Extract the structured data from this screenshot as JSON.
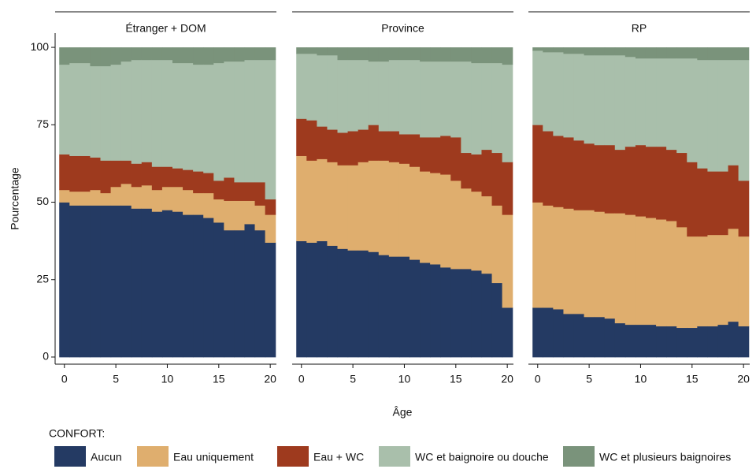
{
  "chart_data": [
    {
      "type": "bar",
      "stacked": true,
      "title": "Étranger + DOM",
      "ylabel": "Pourcentage",
      "legend_title": "CONFORT:",
      "x": [
        0,
        1,
        2,
        3,
        4,
        5,
        6,
        7,
        8,
        9,
        10,
        11,
        12,
        13,
        14,
        15,
        16,
        17,
        18,
        19,
        20
      ],
      "xlim": [
        -0.9,
        20.6
      ],
      "xticks": [
        0,
        5,
        10,
        15,
        20
      ],
      "ylim": [
        -2.3,
        104.6
      ],
      "yticks": [
        0,
        25,
        50,
        75,
        100
      ],
      "series": [
        {
          "name": "Aucun",
          "color": "#243a63",
          "values": [
            50,
            49,
            49,
            49,
            49,
            49,
            49,
            48,
            48,
            47,
            47.5,
            47,
            46,
            46,
            45,
            43.5,
            41,
            41,
            43,
            41,
            37
          ]
        },
        {
          "name": "Eau uniquement",
          "color": "#dfae6e",
          "values": [
            4,
            4.5,
            4.5,
            5,
            4,
            6,
            7,
            7,
            7.5,
            7,
            7.5,
            8,
            8,
            7,
            8,
            7.5,
            9.5,
            9.5,
            7.5,
            8,
            9
          ]
        },
        {
          "name": "Eau + WC",
          "color": "#9e3a1e",
          "values": [
            11.5,
            11.5,
            11.5,
            10.5,
            10.5,
            8.5,
            7.5,
            7.5,
            7.5,
            7.5,
            6.5,
            6,
            6.5,
            7,
            6.5,
            6,
            7.5,
            6,
            6,
            7.5,
            5
          ]
        },
        {
          "name": "WC et baignoire ou douche",
          "color": "#a9bfab",
          "values": [
            29,
            30,
            30,
            29.5,
            30.5,
            31,
            32,
            33.5,
            33,
            34.5,
            34.5,
            34,
            34.5,
            34.5,
            35,
            38,
            37.5,
            39,
            39.5,
            39.5,
            45
          ]
        },
        {
          "name": "WC et plusieurs baignoires",
          "color": "#7a937b",
          "values": [
            5.5,
            5,
            5,
            6,
            6,
            5.5,
            4.5,
            4,
            4,
            4,
            4,
            5,
            5,
            5.5,
            5.5,
            5,
            4.5,
            4.5,
            4,
            4,
            4
          ]
        }
      ]
    },
    {
      "type": "bar",
      "stacked": true,
      "title": "Province",
      "xlabel": "Âge",
      "x": [
        0,
        1,
        2,
        3,
        4,
        5,
        6,
        7,
        8,
        9,
        10,
        11,
        12,
        13,
        14,
        15,
        16,
        17,
        18,
        19,
        20
      ],
      "xlim": [
        -0.9,
        20.6
      ],
      "xticks": [
        0,
        5,
        10,
        15,
        20
      ],
      "ylim": [
        -2.3,
        104.6
      ],
      "series": [
        {
          "name": "Aucun",
          "color": "#243a63",
          "values": [
            37.5,
            37,
            37.5,
            36,
            35,
            34.5,
            34.5,
            34,
            33,
            32.5,
            32.5,
            31.5,
            30.5,
            30,
            29,
            28.5,
            28.5,
            28,
            27,
            24,
            16
          ]
        },
        {
          "name": "Eau uniquement",
          "color": "#dfae6e",
          "values": [
            27.5,
            26.5,
            26.5,
            27,
            27,
            27.5,
            28.5,
            29.5,
            30.5,
            30.5,
            30,
            30,
            29.5,
            29.5,
            30,
            28.5,
            26,
            25.5,
            25,
            25,
            30
          ]
        },
        {
          "name": "Eau + WC",
          "color": "#9e3a1e",
          "values": [
            12,
            13,
            10.5,
            10.5,
            10.5,
            11,
            10.5,
            11.5,
            9.5,
            10,
            9.5,
            10.5,
            11,
            11.5,
            12.5,
            14,
            11.5,
            12,
            15,
            17,
            17
          ]
        },
        {
          "name": "WC et baignoire ou douche",
          "color": "#a9bfab",
          "values": [
            21,
            21.5,
            23,
            24,
            23.5,
            23,
            22.5,
            20.5,
            22.5,
            23,
            24,
            24,
            24.5,
            24.5,
            24,
            24.5,
            29.5,
            29.5,
            28,
            29,
            31.5
          ]
        },
        {
          "name": "WC et plusieurs baignoires",
          "color": "#7a937b",
          "values": [
            2,
            2,
            2.5,
            2.5,
            4,
            4,
            4,
            4.5,
            4.5,
            4,
            4,
            4,
            4.5,
            4.5,
            4.5,
            4.5,
            4.5,
            5,
            5,
            5,
            5.5
          ]
        }
      ]
    },
    {
      "type": "bar",
      "stacked": true,
      "title": "RP",
      "x": [
        0,
        1,
        2,
        3,
        4,
        5,
        6,
        7,
        8,
        9,
        10,
        11,
        12,
        13,
        14,
        15,
        16,
        17,
        18,
        19,
        20
      ],
      "xlim": [
        -0.9,
        20.6
      ],
      "xticks": [
        0,
        5,
        10,
        15,
        20
      ],
      "ylim": [
        -2.3,
        104.6
      ],
      "series": [
        {
          "name": "Aucun",
          "color": "#243a63",
          "values": [
            16,
            16,
            15.5,
            14,
            14,
            13,
            13,
            12.5,
            11,
            10.5,
            10.5,
            10.5,
            10,
            10,
            9.5,
            9.5,
            10,
            10,
            10.5,
            11.5,
            10
          ]
        },
        {
          "name": "Eau uniquement",
          "color": "#dfae6e",
          "values": [
            34,
            33,
            33,
            34,
            33.5,
            34.5,
            34,
            34,
            35.5,
            35.5,
            35,
            34.5,
            34.5,
            34,
            32.5,
            29.5,
            29,
            29.5,
            29,
            30,
            29
          ]
        },
        {
          "name": "Eau + WC",
          "color": "#9e3a1e",
          "values": [
            25,
            24,
            23,
            23,
            22.5,
            21.5,
            21.5,
            22,
            20.5,
            22,
            23,
            23,
            23.5,
            23,
            24,
            24,
            22,
            20.5,
            20.5,
            20.5,
            18
          ]
        },
        {
          "name": "WC et baignoire ou douche",
          "color": "#a9bfab",
          "values": [
            24,
            25.5,
            27,
            27,
            28,
            28.5,
            29,
            29,
            30.5,
            29,
            28,
            28.5,
            28.5,
            29.5,
            30.5,
            33.5,
            35,
            36,
            36,
            34,
            39
          ]
        },
        {
          "name": "WC et plusieurs baignoires",
          "color": "#7a937b",
          "values": [
            1,
            1.5,
            1.5,
            2,
            2,
            2.5,
            2.5,
            2.5,
            2.5,
            3,
            3.5,
            3.5,
            3.5,
            3.5,
            3.5,
            3.5,
            4,
            4,
            4,
            4,
            4
          ]
        }
      ]
    }
  ]
}
